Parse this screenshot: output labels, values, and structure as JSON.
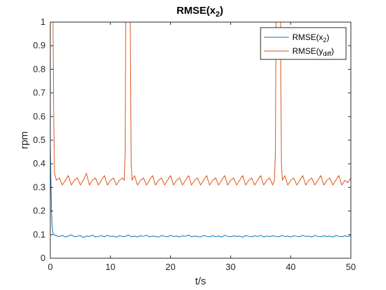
{
  "chart_data": {
    "type": "line",
    "title": {
      "main": "RMSE(x",
      "sub": "2",
      "close": ")"
    },
    "xlabel": "t/s",
    "ylabel": "rpm",
    "xlim": [
      0,
      50
    ],
    "ylim": [
      0,
      1
    ],
    "xticks": [
      0,
      10,
      20,
      30,
      40,
      50
    ],
    "xtick_labels": [
      "0",
      "10",
      "20",
      "30",
      "40",
      "50"
    ],
    "yticks": [
      0,
      0.1,
      0.2,
      0.3,
      0.4,
      0.5,
      0.6,
      0.7,
      0.8,
      0.9,
      1
    ],
    "ytick_labels": [
      "0",
      "0.1",
      "0.2",
      "0.3",
      "0.4",
      "0.5",
      "0.6",
      "0.7",
      "0.8",
      "0.9",
      "1"
    ],
    "grid": false,
    "legend_position": "top-right",
    "series": [
      {
        "legend_main": "RMSE(x",
        "legend_sub": "2",
        "legend_close": ")",
        "color": "#0072BD",
        "x": [
          0.0,
          0.1,
          0.2,
          0.3,
          0.4,
          0.6,
          1.0,
          1.5,
          2.0,
          2.5,
          3.0,
          3.5,
          4.0,
          4.5,
          5.0,
          5.5,
          6.0,
          6.5,
          7.0,
          7.5,
          8.0,
          8.5,
          9.0,
          9.5,
          10.0,
          10.5,
          11.0,
          11.5,
          12.0,
          12.5,
          13.0,
          13.5,
          14.0,
          14.5,
          15.0,
          15.5,
          16.0,
          16.5,
          17.0,
          17.5,
          18.0,
          18.5,
          19.0,
          19.5,
          20.0,
          20.5,
          21.0,
          21.5,
          22.0,
          22.5,
          23.0,
          23.5,
          24.0,
          24.5,
          25.0,
          25.5,
          26.0,
          26.5,
          27.0,
          27.5,
          28.0,
          28.5,
          29.0,
          29.5,
          30.0,
          30.5,
          31.0,
          31.5,
          32.0,
          32.5,
          33.0,
          33.5,
          34.0,
          34.5,
          35.0,
          35.5,
          36.0,
          36.5,
          37.0,
          37.5,
          38.0,
          38.5,
          39.0,
          39.5,
          40.0,
          40.5,
          41.0,
          41.5,
          42.0,
          42.5,
          43.0,
          43.5,
          44.0,
          44.5,
          45.0,
          45.5,
          46.0,
          46.5,
          47.0,
          47.5,
          48.0,
          48.5,
          49.0,
          49.5,
          50.0
        ],
        "y": [
          0.48,
          0.33,
          0.2,
          0.14,
          0.11,
          0.1,
          0.095,
          0.092,
          0.097,
          0.09,
          0.094,
          0.099,
          0.091,
          0.093,
          0.096,
          0.088,
          0.094,
          0.092,
          0.098,
          0.09,
          0.093,
          0.095,
          0.091,
          0.097,
          0.092,
          0.094,
          0.089,
          0.096,
          0.092,
          0.093,
          0.098,
          0.091,
          0.094,
          0.09,
          0.095,
          0.093,
          0.097,
          0.091,
          0.094,
          0.092,
          0.09,
          0.096,
          0.093,
          0.091,
          0.097,
          0.092,
          0.094,
          0.09,
          0.095,
          0.093,
          0.098,
          0.091,
          0.094,
          0.092,
          0.09,
          0.096,
          0.093,
          0.091,
          0.095,
          0.092,
          0.094,
          0.09,
          0.097,
          0.093,
          0.091,
          0.095,
          0.092,
          0.094,
          0.089,
          0.096,
          0.093,
          0.091,
          0.095,
          0.092,
          0.097,
          0.09,
          0.094,
          0.092,
          0.095,
          0.093,
          0.091,
          0.096,
          0.092,
          0.094,
          0.09,
          0.095,
          0.093,
          0.091,
          0.097,
          0.092,
          0.094,
          0.09,
          0.096,
          0.093,
          0.091,
          0.095,
          0.092,
          0.094,
          0.09,
          0.096,
          0.093,
          0.091,
          0.095,
          0.092,
          0.096
        ]
      },
      {
        "legend_main": "RMSE(y",
        "legend_sub": "diff",
        "legend_close": ")",
        "color": "#D95319",
        "x": [
          0.0,
          0.1,
          0.2,
          0.3,
          0.45,
          0.55,
          0.7,
          1.0,
          1.5,
          2.0,
          2.5,
          3.0,
          3.5,
          4.0,
          4.5,
          5.0,
          5.5,
          6.0,
          6.5,
          7.0,
          7.5,
          8.0,
          8.5,
          9.0,
          9.5,
          10.0,
          10.5,
          11.0,
          11.5,
          12.0,
          12.3,
          12.45,
          12.55,
          12.7,
          13.0,
          13.3,
          13.45,
          13.6,
          14.0,
          14.5,
          15.0,
          15.5,
          16.0,
          16.5,
          17.0,
          17.5,
          18.0,
          18.5,
          19.0,
          19.5,
          20.0,
          20.5,
          21.0,
          21.5,
          22.0,
          22.5,
          23.0,
          23.5,
          24.0,
          24.5,
          25.0,
          25.5,
          26.0,
          26.5,
          27.0,
          27.5,
          28.0,
          28.5,
          29.0,
          29.5,
          30.0,
          30.5,
          31.0,
          31.5,
          32.0,
          32.5,
          33.0,
          33.5,
          34.0,
          34.5,
          35.0,
          35.5,
          36.0,
          36.5,
          37.0,
          37.3,
          37.45,
          37.55,
          37.7,
          38.0,
          38.3,
          38.45,
          38.6,
          39.0,
          39.5,
          40.0,
          40.5,
          41.0,
          41.5,
          42.0,
          42.5,
          43.0,
          43.5,
          44.0,
          44.5,
          45.0,
          45.5,
          46.0,
          46.5,
          47.0,
          47.5,
          48.0,
          48.5,
          49.0,
          49.5,
          50.0
        ],
        "y": [
          1.0,
          1.0,
          1.0,
          1.0,
          1.0,
          0.62,
          0.36,
          0.33,
          0.34,
          0.31,
          0.33,
          0.35,
          0.31,
          0.33,
          0.34,
          0.31,
          0.33,
          0.36,
          0.31,
          0.33,
          0.34,
          0.31,
          0.33,
          0.35,
          0.31,
          0.33,
          0.34,
          0.31,
          0.33,
          0.34,
          0.33,
          0.45,
          1.0,
          1.0,
          1.0,
          1.0,
          0.4,
          0.33,
          0.35,
          0.31,
          0.33,
          0.34,
          0.31,
          0.33,
          0.35,
          0.31,
          0.33,
          0.34,
          0.31,
          0.33,
          0.35,
          0.31,
          0.33,
          0.34,
          0.31,
          0.33,
          0.35,
          0.31,
          0.33,
          0.34,
          0.31,
          0.33,
          0.35,
          0.31,
          0.33,
          0.34,
          0.31,
          0.33,
          0.35,
          0.31,
          0.33,
          0.34,
          0.31,
          0.33,
          0.35,
          0.31,
          0.33,
          0.34,
          0.31,
          0.33,
          0.35,
          0.31,
          0.33,
          0.34,
          0.31,
          0.33,
          0.45,
          1.0,
          1.0,
          1.0,
          1.0,
          0.4,
          0.33,
          0.35,
          0.31,
          0.33,
          0.34,
          0.31,
          0.33,
          0.35,
          0.31,
          0.33,
          0.34,
          0.31,
          0.33,
          0.35,
          0.31,
          0.33,
          0.34,
          0.31,
          0.33,
          0.35,
          0.31,
          0.33,
          0.32,
          0.34
        ]
      }
    ]
  }
}
